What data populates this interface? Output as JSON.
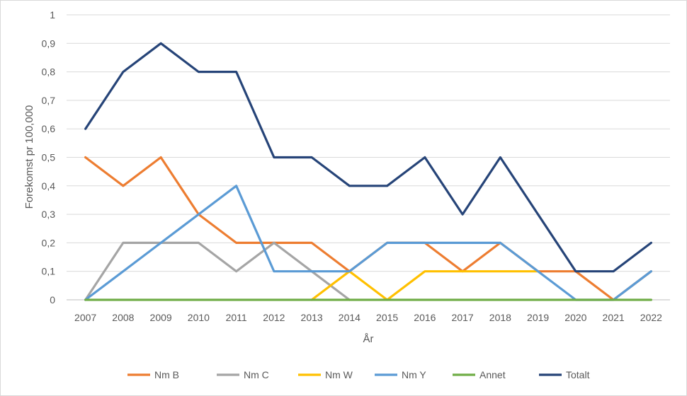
{
  "chart_data": {
    "type": "line",
    "title": "",
    "xlabel": "År",
    "ylabel": "Forekomst pr 100,000",
    "ylim": [
      0,
      1
    ],
    "y_ticks": [
      "0",
      "0,1",
      "0,2",
      "0,3",
      "0,4",
      "0,5",
      "0,6",
      "0,7",
      "0,8",
      "0,9",
      "1"
    ],
    "categories": [
      "2007",
      "2008",
      "2009",
      "2010",
      "2011",
      "2012",
      "2013",
      "2014",
      "2015",
      "2016",
      "2017",
      "2018",
      "2019",
      "2020",
      "2021",
      "2022"
    ],
    "grid": "horizontal",
    "legend_position": "bottom",
    "series": [
      {
        "name": "Nm B",
        "color": "#ED7D31",
        "values": [
          0.5,
          0.4,
          0.5,
          0.3,
          0.2,
          0.2,
          0.2,
          0.1,
          0.2,
          0.2,
          0.1,
          0.2,
          0.1,
          0.1,
          0,
          0.1
        ]
      },
      {
        "name": "Nm C",
        "color": "#A5A5A5",
        "values": [
          0,
          0.2,
          0.2,
          0.2,
          0.1,
          0.2,
          0.1,
          0,
          null,
          null,
          null,
          null,
          null,
          null,
          null,
          null
        ]
      },
      {
        "name": "Nm W",
        "color": "#FFC000",
        "values": [
          null,
          null,
          null,
          null,
          null,
          null,
          0,
          0.1,
          0,
          0.1,
          0.1,
          0.1,
          0.1,
          null,
          null,
          null
        ]
      },
      {
        "name": "Nm Y",
        "color": "#5B9BD5",
        "values": [
          0,
          0.1,
          0.2,
          0.3,
          0.4,
          0.1,
          0.1,
          0.1,
          0.2,
          0.2,
          0.2,
          0.2,
          0.1,
          0,
          0,
          0.1
        ]
      },
      {
        "name": "Annet",
        "color": "#70AD47",
        "values": [
          0,
          0,
          0,
          0,
          0,
          0,
          0,
          0,
          0,
          0,
          0,
          0,
          0,
          0,
          0,
          0
        ]
      },
      {
        "name": "Totalt",
        "color": "#264478",
        "values": [
          0.6,
          0.8,
          0.9,
          0.8,
          0.8,
          0.5,
          0.5,
          0.4,
          0.4,
          0.5,
          0.3,
          0.5,
          0.3,
          0.1,
          0.1,
          0.2
        ]
      }
    ]
  }
}
